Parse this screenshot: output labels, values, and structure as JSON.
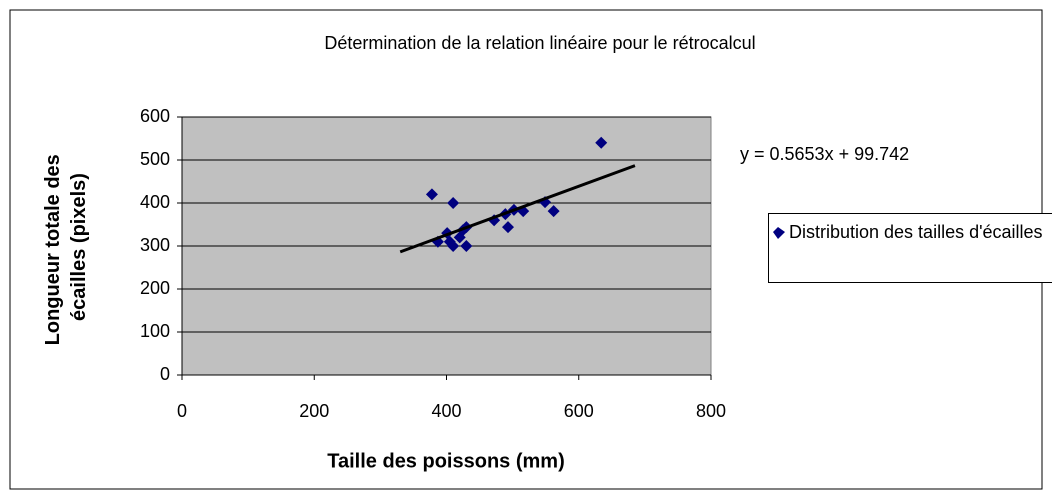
{
  "chart_data": {
    "type": "scatter",
    "title": "Détermination de la relation linéaire pour le rétrocalcul",
    "xlabel": "Taille des poissons (mm)",
    "ylabel": [
      "Longueur totale des",
      "écailles (pixels)"
    ],
    "xlim": [
      0,
      800
    ],
    "xticks": [
      0,
      200,
      400,
      600,
      800
    ],
    "ylim": [
      0,
      600
    ],
    "yticks": [
      0,
      100,
      200,
      300,
      400,
      500,
      600
    ],
    "grid": true,
    "series": [
      {
        "name": "Distribution des tailles d'écailles",
        "color": "#000080",
        "x": [
          378,
          410,
          634,
          387,
          401,
          405,
          410,
          420,
          425,
          430,
          430,
          472,
          489,
          493,
          502,
          516,
          549,
          562
        ],
        "values": [
          420,
          400,
          540,
          310,
          330,
          310,
          300,
          320,
          337,
          344,
          300,
          360,
          374,
          344,
          384,
          381,
          402,
          381
        ]
      }
    ],
    "trendline": {
      "slope": 0.5653,
      "intercept": 99.742,
      "x": [
        330,
        685
      ],
      "color": "#000000",
      "label": "y = 0.5653x + 99.742"
    }
  }
}
